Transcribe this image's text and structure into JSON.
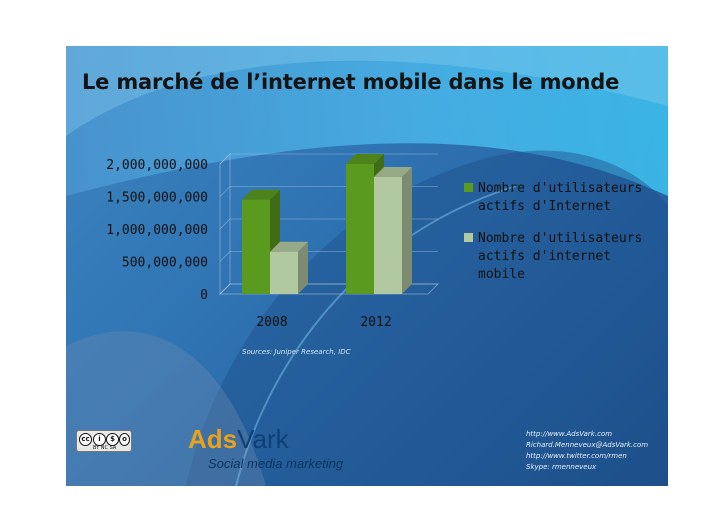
{
  "slide_title": "Le marché de l’internet mobile dans le monde",
  "chart_data": {
    "type": "bar",
    "categories": [
      "2008",
      "2012"
    ],
    "series": [
      {
        "name": "Nombre d'utilisateurs actifs d'Internet",
        "values": [
          1450000000,
          2000000000
        ],
        "color": "#5a9a1e"
      },
      {
        "name": "Nombre d'utilisateurs actifs d'internet mobile",
        "values": [
          650000000,
          1800000000
        ],
        "color": "#b2c8a0"
      }
    ],
    "ylim": [
      0,
      2000000000
    ],
    "yticks": [
      "2,000,000,000",
      "1,500,000,000",
      "1,000,000,000",
      "500,000,000",
      "0"
    ],
    "legend_position": "right",
    "grid": true
  },
  "legend": [
    {
      "lines": [
        "Nombre d'utilisateurs",
        "actifs d'Internet"
      ],
      "color": "#5a9a1e"
    },
    {
      "lines": [
        "Nombre d'utilisateurs",
        "actifs d'internet",
        "mobile"
      ],
      "color": "#b2c8a0"
    }
  ],
  "source_note": "Sources: Juniper Research, IDC",
  "cc_license": {
    "icons": [
      "cc",
      "by",
      "nc",
      "sa"
    ],
    "text": "BY NC SA"
  },
  "logo": {
    "part1": "Ads",
    "part2": "Vark",
    "tagline": "Social media marketing"
  },
  "contact": [
    "http://www.AdsVark.com",
    "Richard.Menneveux@AdsVark.com",
    "http://www.twitter.com/rmen",
    "Skype: rmenneveux"
  ]
}
